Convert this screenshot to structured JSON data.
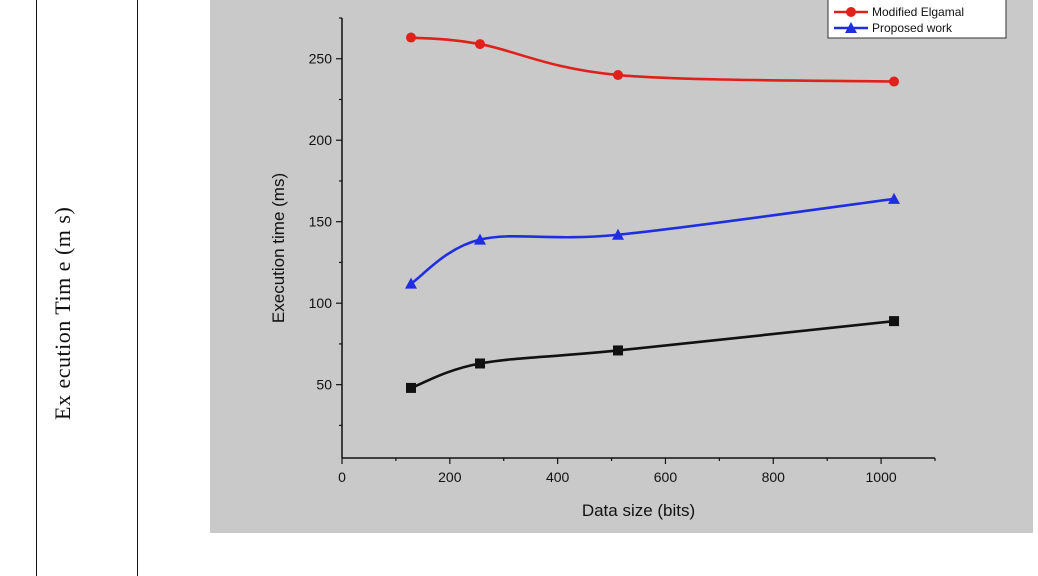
{
  "side_label": "Ex ecution Tim e (m s)",
  "chart_data": {
    "type": "line",
    "title": "",
    "xlabel": "Data size (bits)",
    "ylabel": "Execution time (ms)",
    "xlim": [
      0,
      1100
    ],
    "ylim": [
      5,
      275
    ],
    "xticks": [
      0,
      200,
      400,
      600,
      800,
      1000
    ],
    "yticks": [
      50,
      100,
      150,
      200,
      250
    ],
    "grid": false,
    "legend_position": "top-right",
    "series": [
      {
        "name": "Modified Elgamal",
        "color": "#e0201b",
        "marker": "circle",
        "x": [
          128,
          256,
          512,
          1024
        ],
        "y": [
          263,
          259,
          240,
          236
        ]
      },
      {
        "name": "Proposed work",
        "color": "#1f2ee0",
        "marker": "triangle",
        "x": [
          128,
          256,
          512,
          1024
        ],
        "y": [
          112,
          139,
          142,
          164
        ]
      },
      {
        "x": [
          128,
          256,
          512,
          1024
        ],
        "y": [
          48,
          63,
          71,
          89
        ],
        "color": "#111111",
        "marker": "square"
      }
    ]
  }
}
